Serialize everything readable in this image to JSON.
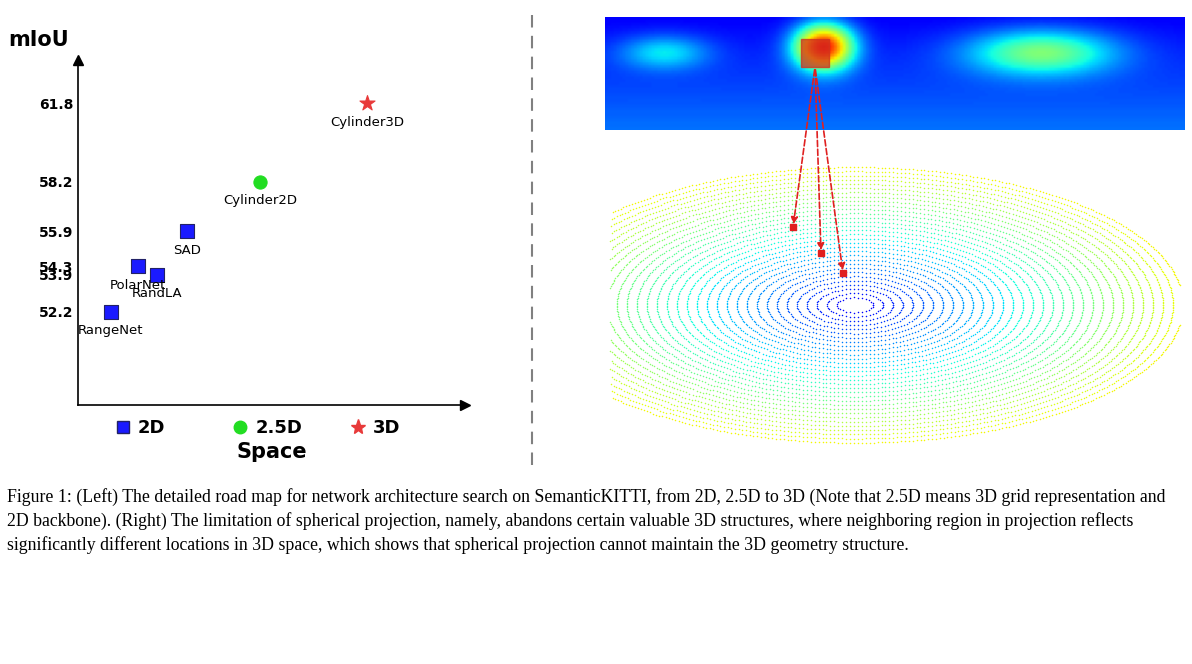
{
  "chart_data": {
    "type": "scatter",
    "ylabel": "mIoU",
    "xlabel": "Space",
    "xlim": [
      0.49,
      3.78
    ],
    "ylim": [
      47.9,
      63.8
    ],
    "xticks": [
      {
        "value": 1,
        "label": "2D"
      },
      {
        "value": 2,
        "label": "2.5D"
      },
      {
        "value": 3,
        "label": "3D"
      }
    ],
    "yticks": [
      52.2,
      53.9,
      54.3,
      55.9,
      58.2,
      61.8
    ],
    "tick_labels": true,
    "series": [
      {
        "color": "#1a1aff",
        "marker": "square",
        "x": [
          0.77,
          1.0,
          1.16,
          1.42
        ],
        "values": [
          52.2,
          54.3,
          53.9,
          55.9
        ],
        "labels": [
          "RangeNet",
          "PolarNet",
          "RandLA",
          "SAD"
        ]
      },
      {
        "color": "#22dd22",
        "marker": "circle",
        "x": [
          2.04
        ],
        "values": [
          58.2
        ],
        "labels": [
          "Cylinder2D"
        ]
      },
      {
        "color": "#e83a3a",
        "marker": "star",
        "x": [
          2.95
        ],
        "values": [
          61.8
        ],
        "labels": [
          "Cylinder3D"
        ]
      }
    ]
  },
  "caption": "Figure 1: (Left) The detailed road map for network architecture search on SemanticKITTI, from 2D, 2.5D to 3D (Note that 2.5D means 3D grid representation and 2D backbone). (Right) The limitation of spherical projection, namely, abandons certain valuable 3D structures, where neighboring region in projection reflects significantly different locations in 3D space, which shows that spherical projection cannot maintain the 3D geometry structure."
}
